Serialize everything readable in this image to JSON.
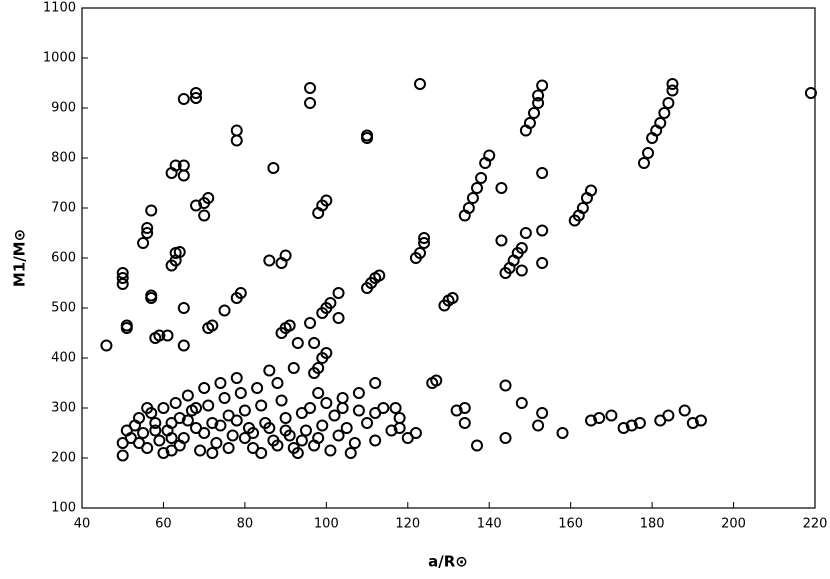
{
  "chart_data": {
    "type": "scatter",
    "x_label": "a/R⊙",
    "y_label": "M1/M⊙",
    "xlim": [
      40,
      220
    ],
    "xticks": [
      40,
      60,
      80,
      100,
      120,
      140,
      160,
      180,
      200,
      220
    ],
    "ylim": [
      100,
      1100
    ],
    "yticks": [
      100,
      200,
      300,
      400,
      500,
      600,
      700,
      800,
      900,
      1000,
      1100
    ],
    "color": "#000000",
    "x": [
      46,
      50,
      50,
      50,
      51,
      51,
      55,
      56,
      56,
      57,
      57,
      57,
      58,
      59,
      61,
      62,
      63,
      63,
      64,
      62,
      63,
      65,
      65,
      65,
      68,
      68,
      65,
      65,
      68,
      70,
      70,
      71,
      71,
      72,
      75,
      78,
      79,
      78,
      78,
      86,
      87,
      89,
      90,
      89,
      90,
      91,
      93,
      96,
      96,
      98,
      99,
      100,
      96,
      99,
      100,
      101,
      103,
      103,
      97,
      100,
      99,
      98,
      97,
      110,
      110,
      110,
      111,
      112,
      113,
      122,
      123,
      124,
      124,
      123,
      129,
      130,
      131,
      134,
      135,
      136,
      137,
      138,
      139,
      140,
      143,
      143,
      144,
      145,
      146,
      147,
      148,
      149,
      148,
      149,
      150,
      151,
      152,
      152,
      153,
      153,
      153,
      153,
      161,
      162,
      163,
      164,
      165,
      178,
      179,
      180,
      181,
      182,
      183,
      184,
      185,
      185,
      219,
      134,
      137,
      144,
      144,
      148,
      153,
      152,
      158,
      165,
      167,
      170,
      173,
      175,
      177,
      182,
      184,
      188,
      190,
      192,
      126,
      127,
      132,
      134,
      122,
      118,
      112,
      108,
      104,
      106,
      50,
      50,
      51,
      52,
      53,
      54,
      55,
      56,
      57,
      58,
      59,
      60,
      61,
      62,
      63,
      64,
      65,
      66,
      67,
      68,
      69,
      70,
      71,
      72,
      73,
      74,
      75,
      76,
      77,
      78,
      79,
      80,
      81,
      82,
      83,
      84,
      85,
      86,
      87,
      88,
      89,
      90,
      91,
      92,
      93,
      94,
      95,
      96,
      97,
      98,
      99,
      100,
      101,
      102,
      103,
      104,
      105,
      107,
      108,
      110,
      112,
      114,
      116,
      118,
      120,
      56,
      60,
      64,
      68,
      72,
      76,
      80,
      84,
      88,
      92,
      66,
      58,
      62,
      70,
      74,
      78,
      82,
      86,
      90,
      94,
      98,
      54,
      62,
      112,
      117
    ],
    "values": [
      425,
      560,
      548,
      570,
      465,
      460,
      630,
      650,
      660,
      695,
      520,
      525,
      440,
      445,
      445,
      585,
      595,
      610,
      612,
      770,
      785,
      785,
      765,
      918,
      920,
      930,
      500,
      425,
      705,
      685,
      710,
      720,
      460,
      465,
      495,
      520,
      530,
      835,
      855,
      595,
      780,
      590,
      605,
      450,
      460,
      465,
      430,
      910,
      940,
      690,
      705,
      715,
      470,
      490,
      500,
      510,
      530,
      480,
      430,
      410,
      400,
      380,
      370,
      840,
      845,
      540,
      550,
      560,
      565,
      600,
      610,
      630,
      640,
      948,
      505,
      515,
      520,
      685,
      700,
      720,
      740,
      760,
      790,
      805,
      740,
      635,
      570,
      580,
      595,
      610,
      620,
      650,
      575,
      855,
      870,
      890,
      910,
      925,
      945,
      770,
      655,
      590,
      675,
      685,
      700,
      720,
      735,
      790,
      810,
      840,
      855,
      870,
      890,
      910,
      935,
      948,
      930,
      270,
      225,
      345,
      240,
      310,
      290,
      265,
      250,
      275,
      280,
      285,
      260,
      265,
      270,
      275,
      285,
      295,
      270,
      275,
      350,
      355,
      295,
      300,
      250,
      260,
      350,
      330,
      320,
      210,
      205,
      230,
      255,
      240,
      265,
      280,
      250,
      220,
      290,
      270,
      235,
      300,
      255,
      215,
      310,
      280,
      240,
      325,
      295,
      260,
      215,
      340,
      305,
      270,
      230,
      350,
      320,
      285,
      245,
      360,
      330,
      295,
      260,
      220,
      340,
      305,
      270,
      375,
      235,
      350,
      315,
      280,
      245,
      380,
      210,
      290,
      255,
      300,
      225,
      330,
      265,
      310,
      215,
      285,
      245,
      300,
      260,
      230,
      295,
      270,
      235,
      300,
      255,
      280,
      240,
      300,
      210,
      225,
      300,
      210,
      220,
      240,
      210,
      225,
      220,
      275,
      255,
      270,
      250,
      265,
      275,
      250,
      260,
      255,
      235,
      240,
      230,
      240,
      290,
      300
    ]
  }
}
